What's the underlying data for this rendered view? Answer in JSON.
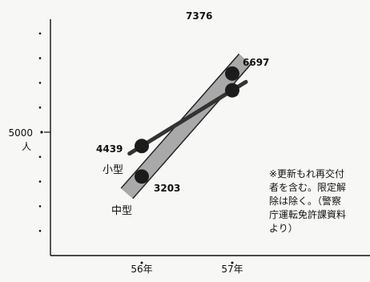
{
  "chart_data": {
    "type": "line",
    "x": [
      "56年",
      "57年"
    ],
    "ylabel": "人",
    "y_tick_label": "5000",
    "y_tick_value": 5000,
    "ylim": [
      0,
      10000
    ],
    "series": [
      {
        "name": "中型",
        "values": [
          3203,
          7376
        ],
        "color": "#a9a9a9"
      },
      {
        "name": "小型",
        "values": [
          4439,
          6697
        ],
        "color": "#333333"
      }
    ],
    "data_labels": [
      {
        "series": "中型",
        "x": "56年",
        "text": "3203"
      },
      {
        "series": "中型",
        "x": "57年",
        "text": "7376"
      },
      {
        "series": "小型",
        "x": "56年",
        "text": "4439"
      },
      {
        "series": "小型",
        "x": "57年",
        "text": "6697"
      }
    ],
    "note": [
      "※更新もれ再交付",
      "者を含む。限定解",
      "除は除く。（警察",
      "庁運転免許課資料",
      "より）"
    ],
    "grid": false
  }
}
